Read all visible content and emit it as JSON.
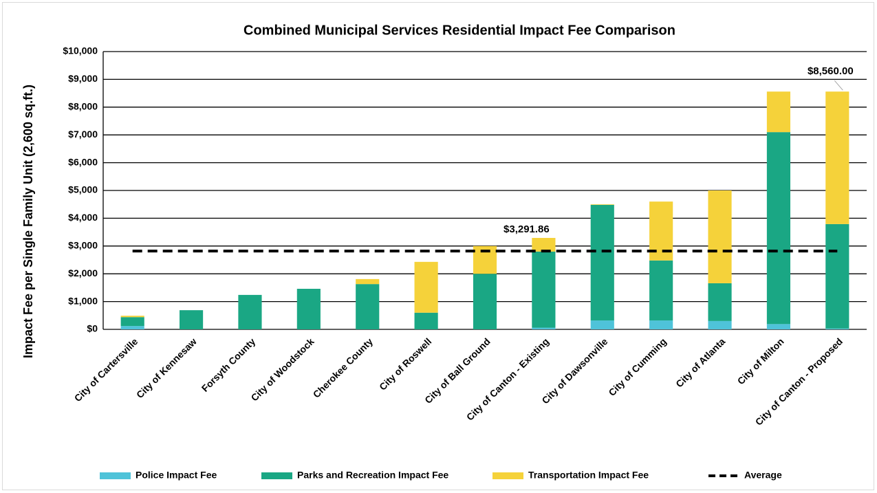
{
  "chart_data": {
    "type": "stacked_bar",
    "title": "Combined Municipal Services Residential Impact Fee Comparison",
    "ylabel": "Impact Fee per Single Family  Unit (2,600 sq.ft.)",
    "categories": [
      "City of Cartersville",
      "City of Kennesaw",
      "Forsyth County",
      "City of Woodstock",
      "Cherokee County",
      "City of Roswell",
      "City of Ball Ground",
      "City of Canton - Existing",
      "City of Dawsonville",
      "City of Cumming",
      "City of Atlanta",
      "City of Milton",
      "City of Canton - Proposed"
    ],
    "series": [
      {
        "name": "Police Impact Fee",
        "color": "#4fc3d9",
        "values": [
          120,
          0,
          0,
          0,
          0,
          0,
          0,
          60,
          320,
          320,
          300,
          190,
          30
        ]
      },
      {
        "name": "Parks and Recreation Impact Fee",
        "color": "#1aa784",
        "values": [
          320,
          690,
          1240,
          1460,
          1630,
          600,
          2000,
          2740,
          4160,
          2160,
          1360,
          6910,
          3760
        ]
      },
      {
        "name": "Transportation Impact Fee",
        "color": "#f5d23a",
        "values": [
          50,
          0,
          0,
          0,
          180,
          1830,
          1000,
          491.86,
          20,
          2120,
          3340,
          1460,
          4770
        ]
      }
    ],
    "average": {
      "name": "Average",
      "color": "#000000",
      "value": 2820
    },
    "annotations": [
      {
        "text": "$3,291.86",
        "category": 7
      },
      {
        "text": "$8,560.00",
        "category": 12
      }
    ],
    "ylim": [
      0,
      10000
    ],
    "yticks": [
      {
        "value": 0,
        "label": "$0"
      },
      {
        "value": 1000,
        "label": "$1,000"
      },
      {
        "value": 2000,
        "label": "$2,000"
      },
      {
        "value": 3000,
        "label": "$3,000"
      },
      {
        "value": 4000,
        "label": "$4,000"
      },
      {
        "value": 5000,
        "label": "$5,000"
      },
      {
        "value": 6000,
        "label": "$6,000"
      },
      {
        "value": 7000,
        "label": "$7,000"
      },
      {
        "value": 8000,
        "label": "$8,000"
      },
      {
        "value": 9000,
        "label": "$9,000"
      },
      {
        "value": 10000,
        "label": "$10,000"
      }
    ],
    "grid": true,
    "legend": "bottom"
  }
}
